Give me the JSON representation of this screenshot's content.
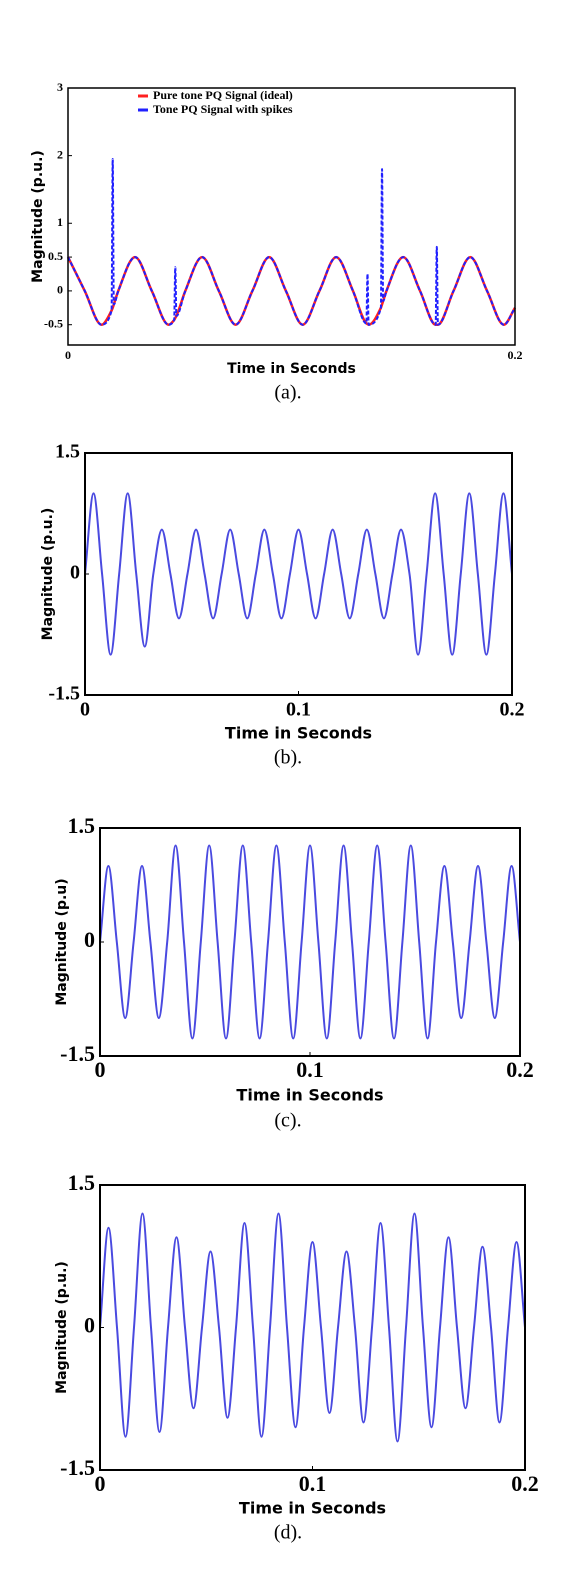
{
  "chart_data": [
    {
      "type": "line",
      "caption": "(a).",
      "xlabel": "Time in Seconds",
      "ylabel": "Magnitude (p.u.)",
      "xlim": [
        0,
        0.2
      ],
      "xticks": [
        0,
        0.2
      ],
      "ylim": [
        -0.8,
        3
      ],
      "yticks": [
        -0.5,
        0,
        0.5,
        1,
        2,
        3
      ],
      "legend": "upper left",
      "x": [
        0,
        0.0075,
        0.015,
        0.0195,
        0.02,
        0.0205,
        0.0225,
        0.03,
        0.0375,
        0.045,
        0.0475,
        0.048,
        0.0485,
        0.0525,
        0.06,
        0.0675,
        0.075,
        0.0825,
        0.09,
        0.0975,
        0.105,
        0.1125,
        0.12,
        0.1275,
        0.1335,
        0.134,
        0.1345,
        0.14,
        0.1405,
        0.141,
        0.1425,
        0.15,
        0.1575,
        0.1645,
        0.165,
        0.1655,
        0.1725,
        0.18,
        0.1875,
        0.195,
        0.2
      ],
      "series": [
        {
          "name": "Pure tone PQ Signal (ideal)",
          "color": "#ff2020",
          "line_style": "solid",
          "values": [
            0.5,
            0,
            -0.5,
            -0.29,
            -0.25,
            -0.2,
            0,
            0.5,
            0,
            -0.5,
            -0.43,
            -0.4,
            -0.37,
            0,
            0.5,
            0,
            -0.5,
            0,
            0.5,
            0,
            -0.5,
            0,
            0.5,
            0,
            -0.48,
            -0.49,
            -0.5,
            -0.25,
            -0.2,
            -0.15,
            0,
            0.5,
            0,
            -0.5,
            -0.5,
            -0.5,
            0,
            0.5,
            0,
            -0.5,
            -0.25
          ]
        },
        {
          "name": "Tone PQ Signal with spikes",
          "color": "#2020ff",
          "line_style": "dashed",
          "values": [
            0.5,
            0,
            -0.5,
            -0.29,
            1.95,
            -0.2,
            0,
            0.5,
            0,
            -0.5,
            -0.43,
            0.35,
            -0.37,
            0,
            0.5,
            0,
            -0.5,
            0,
            0.5,
            0,
            -0.5,
            0,
            0.5,
            0,
            -0.48,
            0.25,
            -0.5,
            -0.25,
            1.8,
            -0.15,
            0,
            0.5,
            0,
            -0.5,
            0.65,
            -0.5,
            0,
            0.5,
            0,
            -0.5,
            -0.25
          ]
        }
      ]
    },
    {
      "type": "line",
      "caption": "(b).",
      "xlabel": "Time in Seconds",
      "ylabel": "Magnitude (p.u.)",
      "xlim": [
        0,
        0.2
      ],
      "xticks": [
        0,
        0.1,
        0.2
      ],
      "ylim": [
        -1.5,
        1.5
      ],
      "yticks": [
        -1.5,
        0,
        1.5
      ],
      "x": [
        0,
        0.004,
        0.008,
        0.012,
        0.016,
        0.02,
        0.024,
        0.028,
        0.032,
        0.036,
        0.04,
        0.044,
        0.048,
        0.052,
        0.056,
        0.06,
        0.064,
        0.068,
        0.072,
        0.076,
        0.08,
        0.084,
        0.088,
        0.092,
        0.096,
        0.1,
        0.104,
        0.108,
        0.112,
        0.116,
        0.12,
        0.124,
        0.128,
        0.132,
        0.136,
        0.14,
        0.144,
        0.148,
        0.152,
        0.156,
        0.16,
        0.164,
        0.168,
        0.172,
        0.176,
        0.18,
        0.184,
        0.188,
        0.192,
        0.196,
        0.2
      ],
      "series": [
        {
          "color": "#4a4ae0",
          "line_style": "solid",
          "values": [
            0,
            1,
            0,
            -1,
            0,
            1,
            0,
            -0.9,
            0,
            0.55,
            0,
            -0.55,
            0,
            0.55,
            0,
            -0.55,
            0,
            0.55,
            0,
            -0.55,
            0,
            0.55,
            0,
            -0.55,
            0,
            0.55,
            0,
            -0.55,
            0,
            0.55,
            0,
            -0.55,
            0,
            0.55,
            0,
            -0.55,
            0,
            0.55,
            0,
            -1,
            0,
            1,
            0,
            -1,
            0,
            1,
            0,
            -1,
            0,
            1,
            0
          ]
        }
      ]
    },
    {
      "type": "line",
      "caption": "(c).",
      "xlabel": "Time in Seconds",
      "ylabel": "Magnitude (p.u)",
      "xlim": [
        0,
        0.2
      ],
      "xticks": [
        0,
        0.1,
        0.2
      ],
      "ylim": [
        -1.5,
        1.5
      ],
      "yticks": [
        -1.5,
        0,
        1.5
      ],
      "x": [
        0,
        0.004,
        0.008,
        0.012,
        0.016,
        0.02,
        0.024,
        0.028,
        0.032,
        0.036,
        0.04,
        0.044,
        0.048,
        0.052,
        0.056,
        0.06,
        0.064,
        0.068,
        0.072,
        0.076,
        0.08,
        0.084,
        0.088,
        0.092,
        0.096,
        0.1,
        0.104,
        0.108,
        0.112,
        0.116,
        0.12,
        0.124,
        0.128,
        0.132,
        0.136,
        0.14,
        0.144,
        0.148,
        0.152,
        0.156,
        0.16,
        0.164,
        0.168,
        0.172,
        0.176,
        0.18,
        0.184,
        0.188,
        0.192,
        0.196,
        0.2
      ],
      "series": [
        {
          "color": "#4a4ae0",
          "line_style": "solid",
          "values": [
            0,
            1,
            0,
            -1,
            0,
            1,
            0,
            -1,
            0,
            1.27,
            0,
            -1.27,
            0,
            1.27,
            0,
            -1.27,
            0,
            1.27,
            0,
            -1.27,
            0,
            1.27,
            0,
            -1.27,
            0,
            1.27,
            0,
            -1.27,
            0,
            1.27,
            0,
            -1.27,
            0,
            1.27,
            0,
            -1.27,
            0,
            1.27,
            0,
            -1.27,
            0,
            1,
            0,
            -1,
            0,
            1,
            0,
            -1,
            0,
            1,
            0
          ]
        }
      ]
    },
    {
      "type": "line",
      "caption": "(d).",
      "xlabel": "Time in Seconds",
      "ylabel": "Magnitude (p.u.)",
      "xlim": [
        0,
        0.2
      ],
      "xticks": [
        0,
        0.1,
        0.2
      ],
      "ylim": [
        -1.5,
        1.5
      ],
      "yticks": [
        -1.5,
        0,
        1.5
      ],
      "x": [
        0,
        0.004,
        0.008,
        0.012,
        0.016,
        0.02,
        0.024,
        0.028,
        0.032,
        0.036,
        0.04,
        0.044,
        0.048,
        0.052,
        0.056,
        0.06,
        0.064,
        0.068,
        0.072,
        0.076,
        0.08,
        0.084,
        0.088,
        0.092,
        0.096,
        0.1,
        0.104,
        0.108,
        0.112,
        0.116,
        0.12,
        0.124,
        0.128,
        0.132,
        0.136,
        0.14,
        0.144,
        0.148,
        0.152,
        0.156,
        0.16,
        0.164,
        0.168,
        0.172,
        0.176,
        0.18,
        0.184,
        0.188,
        0.192,
        0.196,
        0.2
      ],
      "series": [
        {
          "color": "#4a4ae0",
          "line_style": "solid",
          "values": [
            0,
            1.05,
            0,
            -1.15,
            0,
            1.2,
            0,
            -1.1,
            0,
            0.95,
            0,
            -0.85,
            0,
            0.8,
            0,
            -0.95,
            0,
            1.1,
            0,
            -1.15,
            0,
            1.2,
            0,
            -1.05,
            0,
            0.9,
            0,
            -0.9,
            0,
            0.8,
            0,
            -1,
            0,
            1.1,
            0,
            -1.2,
            0,
            1.2,
            0,
            -1.05,
            0,
            0.95,
            0,
            -0.85,
            0,
            0.85,
            0,
            -1,
            0,
            0.9,
            0
          ]
        }
      ]
    }
  ]
}
